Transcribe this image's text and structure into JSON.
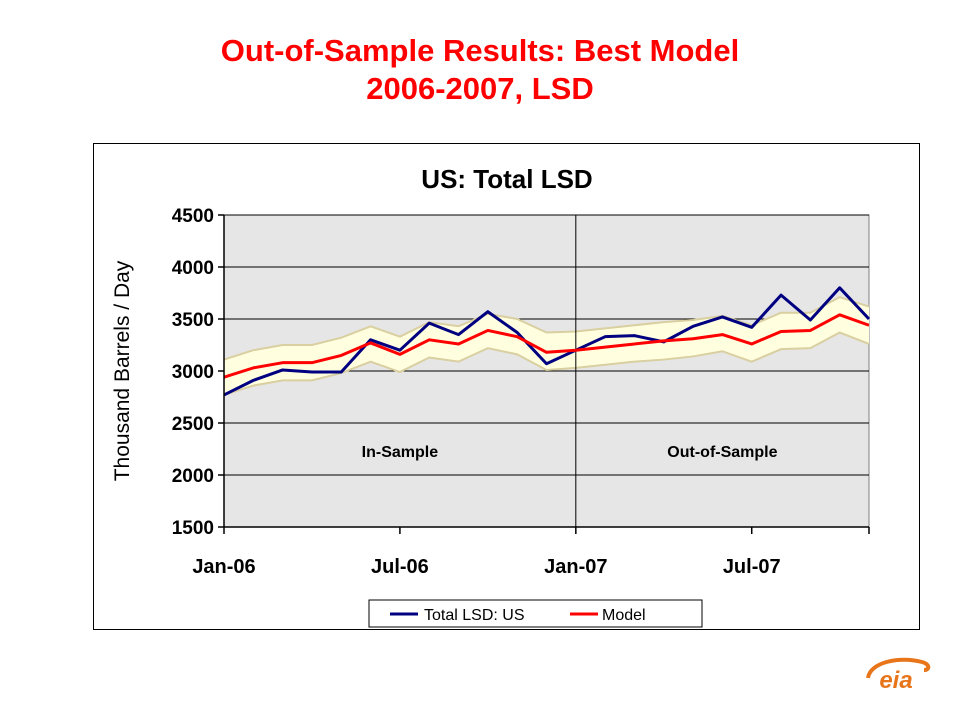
{
  "slide": {
    "title_line1": "Out-of-Sample Results:  Best Model",
    "title_line2": "2006-2007, LSD",
    "logo_text": "eia"
  },
  "colors": {
    "title": "#ff0000",
    "actual": "#000080",
    "model": "#ff0000",
    "band_fill": "#ffffe0",
    "band_edge": "#d9cfa0",
    "plot_bg": "#e6e6e6"
  },
  "chart_data": {
    "type": "line",
    "title": "US:  Total LSD",
    "xlabel": "",
    "ylabel": "Thousand Barrels / Day",
    "ylim": [
      1500,
      4500
    ],
    "yticks": [
      1500,
      2000,
      2500,
      3000,
      3500,
      4000,
      4500
    ],
    "xtick_labels": [
      "Jan-06",
      "Jul-06",
      "Jan-07",
      "Jul-07"
    ],
    "xtick_index": [
      0,
      6,
      12,
      18
    ],
    "x_count": 23,
    "divider_index": 12,
    "grid": true,
    "legend_position": "bottom",
    "annotations": [
      {
        "text": "In-Sample",
        "region": "in-sample"
      },
      {
        "text": "Out-of-Sample",
        "region": "out-of-sample"
      }
    ],
    "series": [
      {
        "name": "Total LSD: US",
        "values": [
          2770,
          2910,
          3010,
          2990,
          2990,
          3300,
          3200,
          3460,
          3350,
          3570,
          3370,
          3070,
          3200,
          3330,
          3340,
          3280,
          3430,
          3520,
          3420,
          3730,
          3490,
          3800,
          3500
        ]
      },
      {
        "name": "Model",
        "values": [
          2940,
          3030,
          3080,
          3080,
          3150,
          3270,
          3160,
          3300,
          3260,
          3390,
          3330,
          3180,
          3200,
          3230,
          3260,
          3290,
          3310,
          3350,
          3260,
          3380,
          3390,
          3540,
          3440
        ]
      }
    ],
    "band": {
      "upper": [
        3110,
        3200,
        3250,
        3250,
        3320,
        3430,
        3330,
        3470,
        3430,
        3550,
        3500,
        3370,
        3380,
        3410,
        3440,
        3470,
        3490,
        3530,
        3440,
        3560,
        3560,
        3710,
        3620
      ],
      "lower": [
        2770,
        2860,
        2910,
        2910,
        2980,
        3090,
        2990,
        3130,
        3090,
        3220,
        3160,
        3010,
        3030,
        3060,
        3090,
        3110,
        3140,
        3190,
        3090,
        3210,
        3220,
        3370,
        3260
      ]
    }
  }
}
